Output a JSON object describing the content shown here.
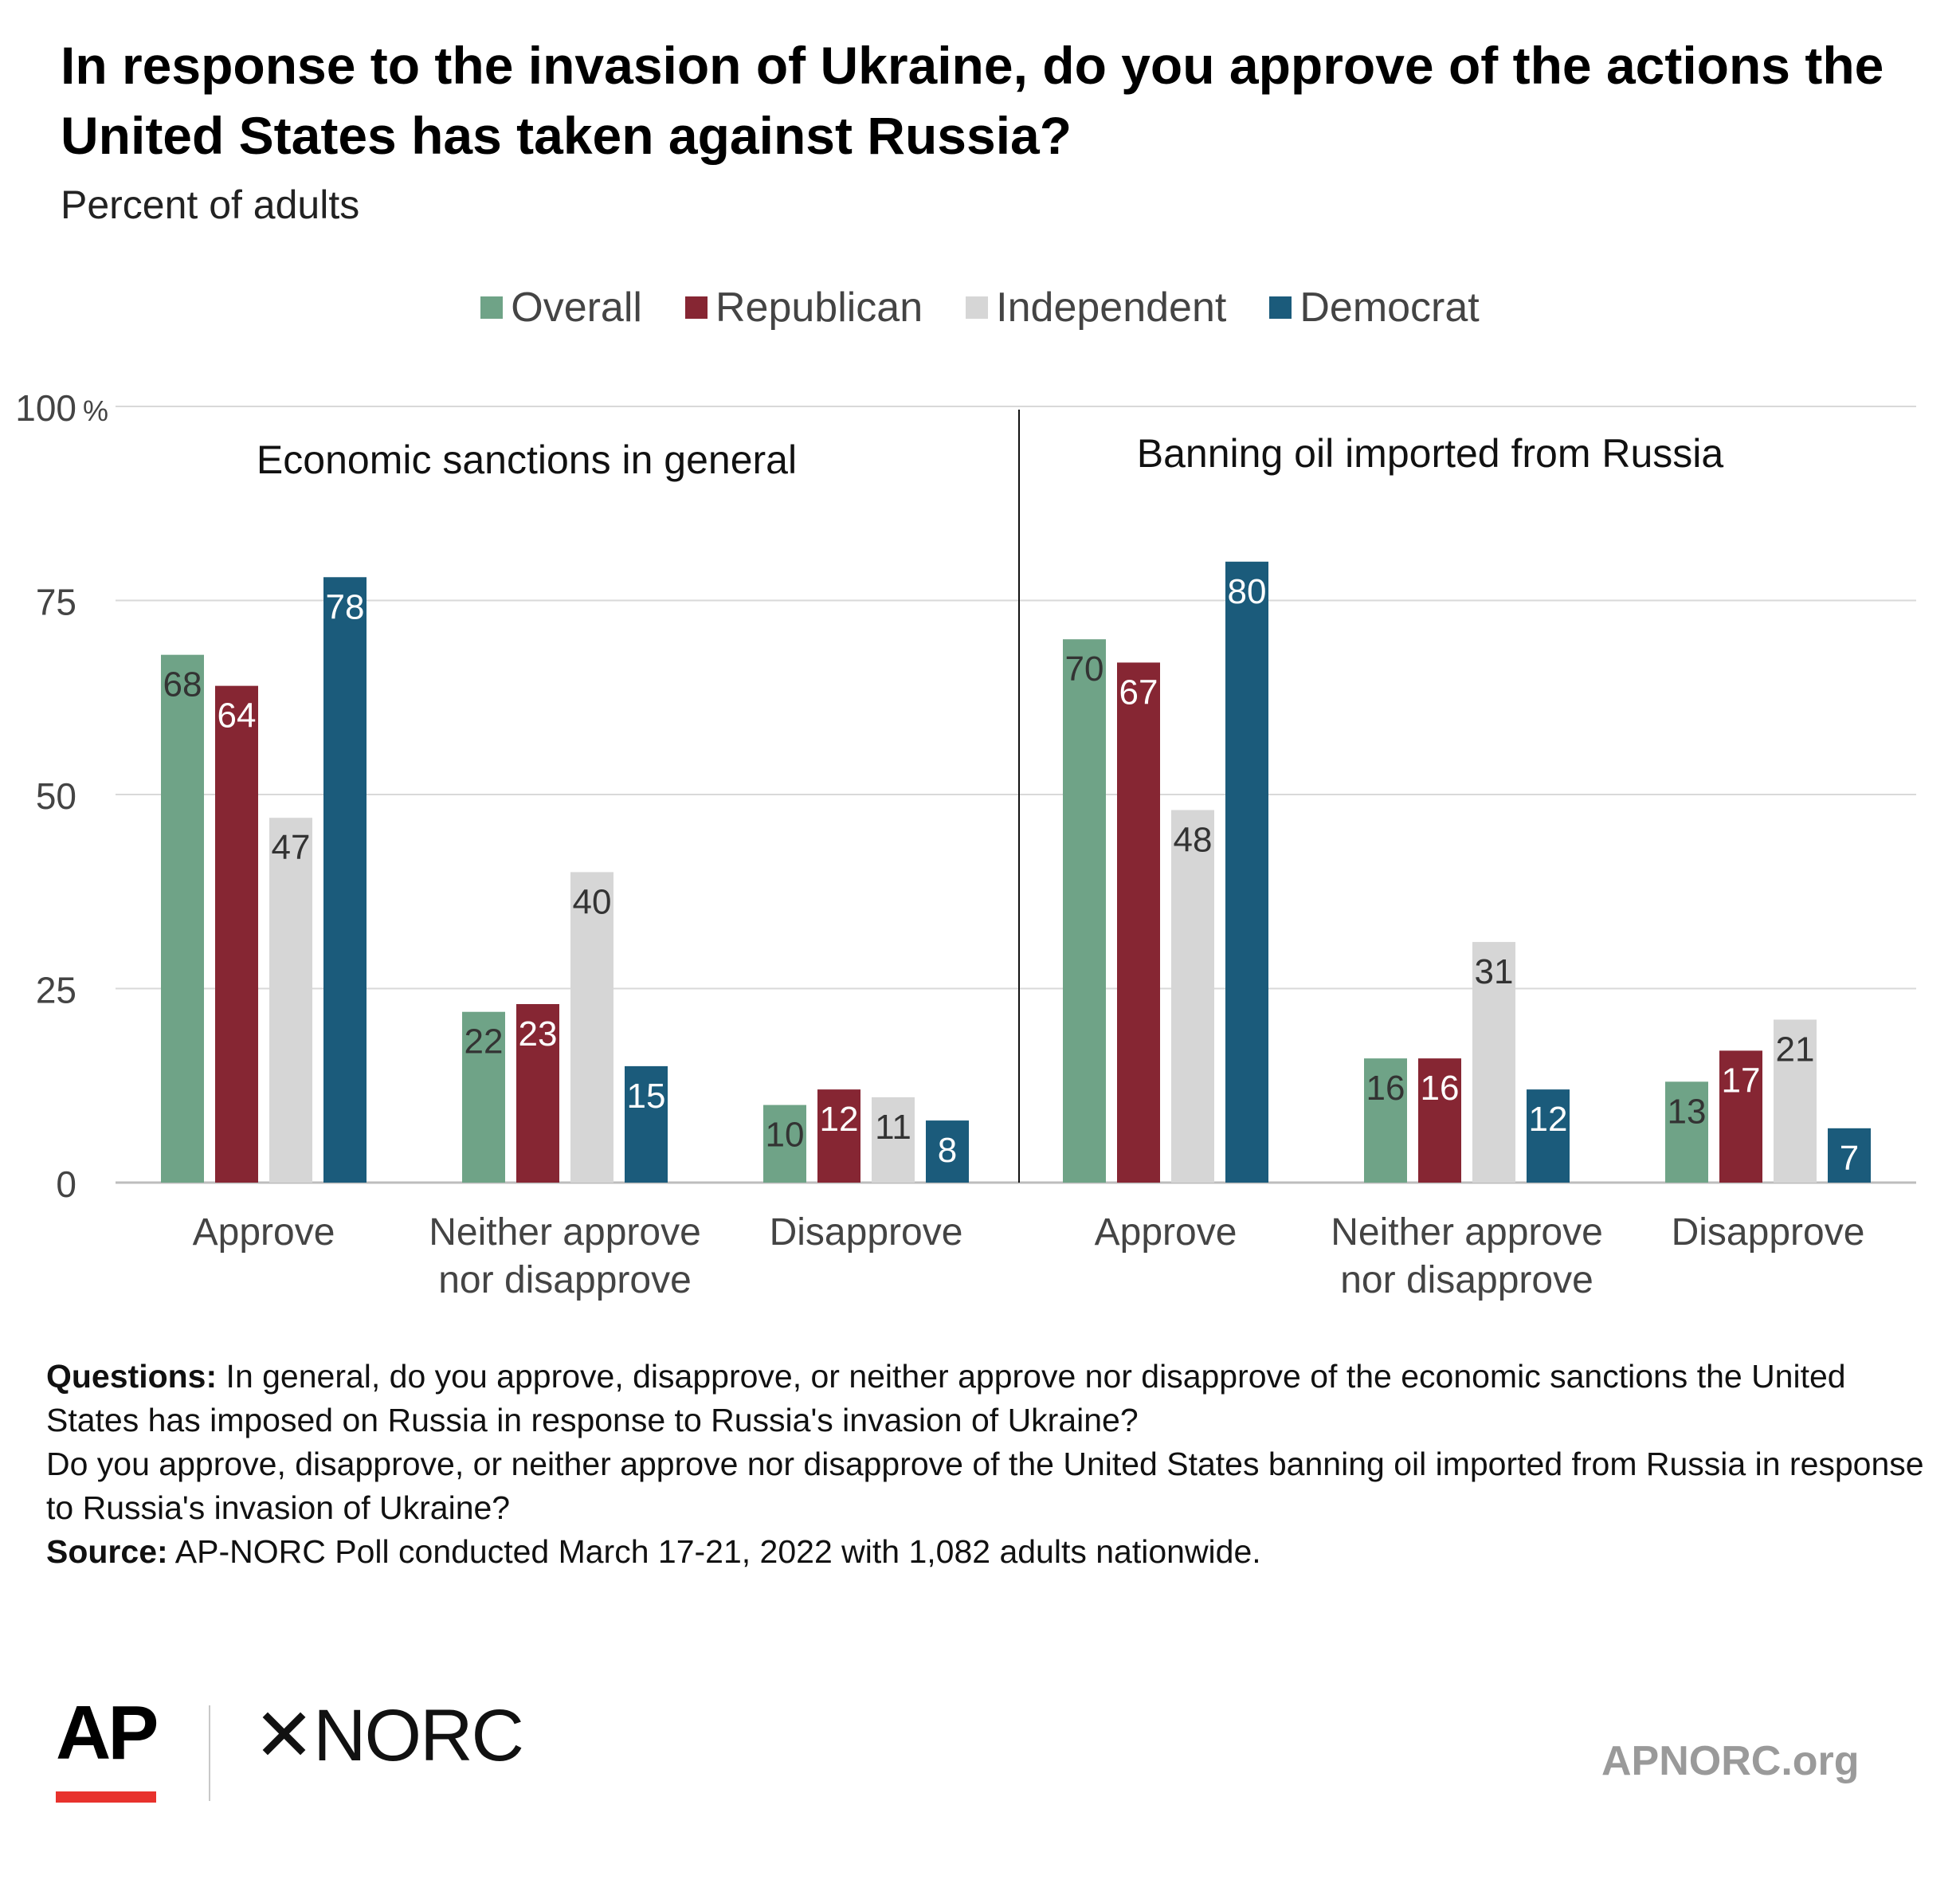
{
  "header": {
    "title": "In response to the invasion of Ukraine, do you approve of the actions the United States has taken against Russia?",
    "subtitle": "Percent of adults"
  },
  "colors": {
    "Overall": "#6fa387",
    "Republican": "#862633",
    "Independent": "#d6d6d6",
    "Democrat": "#1b5b7b",
    "grid": "#d9d9d9",
    "axis_text": "#444444"
  },
  "legend": [
    "Overall",
    "Republican",
    "Independent",
    "Democrat"
  ],
  "chart_data": {
    "type": "bar",
    "ylim": [
      0,
      100
    ],
    "yticks": [
      "0",
      "25",
      "50",
      "75",
      "100"
    ],
    "yunit": "%",
    "grid": true,
    "legend_position": "top",
    "panels": [
      {
        "title": "Economic sanctions in general",
        "categories": [
          "Approve",
          "Neither approve\nnor disapprove",
          "Disapprove"
        ],
        "series": [
          {
            "name": "Overall",
            "values": [
              68,
              22,
              10
            ]
          },
          {
            "name": "Republican",
            "values": [
              64,
              23,
              12
            ]
          },
          {
            "name": "Independent",
            "values": [
              47,
              40,
              11
            ]
          },
          {
            "name": "Democrat",
            "values": [
              78,
              15,
              8
            ]
          }
        ]
      },
      {
        "title": "Banning oil imported from Russia",
        "categories": [
          "Approve",
          "Neither approve\nnor disapprove",
          "Disapprove"
        ],
        "series": [
          {
            "name": "Overall",
            "values": [
              70,
              16,
              13
            ]
          },
          {
            "name": "Republican",
            "values": [
              67,
              16,
              17
            ]
          },
          {
            "name": "Independent",
            "values": [
              48,
              31,
              21
            ]
          },
          {
            "name": "Democrat",
            "values": [
              80,
              12,
              7
            ]
          }
        ]
      }
    ]
  },
  "notes": {
    "questions_label": "Questions:",
    "question_1": "In general, do you approve, disapprove, or neither approve nor disapprove of the economic sanctions the United States has imposed on Russia in response to Russia's invasion of Ukraine?",
    "question_2": "Do you approve, disapprove, or neither approve nor disapprove of the United States banning oil imported from Russia in response to Russia's invasion of Ukraine?",
    "source_label": "Source:",
    "source": "AP-NORC Poll conducted March 17-21, 2022 with 1,082 adults nationwide."
  },
  "footer": {
    "logo_ap": "AP",
    "logo_norc_star": "✕",
    "logo_norc": "NORC",
    "site": "APNORC.org"
  }
}
